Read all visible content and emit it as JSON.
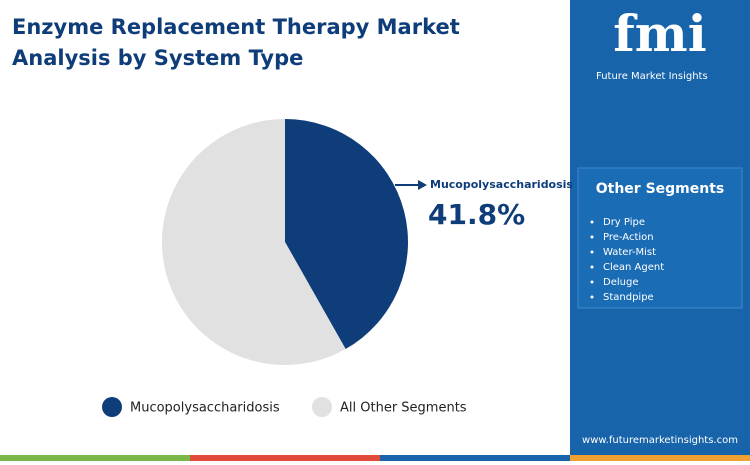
{
  "chart_data": {
    "type": "pie",
    "title": "Enzyme Replacement Therapy Market Analysis by System Type",
    "categories": [
      "Mucopolysaccharidosis",
      "All Other Segments"
    ],
    "values": [
      41.8,
      58.2
    ],
    "value_labels": [
      "41.8%",
      null
    ],
    "colors": [
      "#0e3d7a",
      "#e1e1e1"
    ],
    "legend": "bottom"
  },
  "sidebar": {
    "logo": "fmi",
    "brand": "Future Market Insights",
    "segments_title": "Other Segments",
    "segments": [
      "Dry Pipe",
      "Pre-Action",
      "Water-Mist",
      "Clean Agent",
      "Deluge",
      "Standpipe"
    ],
    "url": "www.futuremarketinsights.com"
  }
}
